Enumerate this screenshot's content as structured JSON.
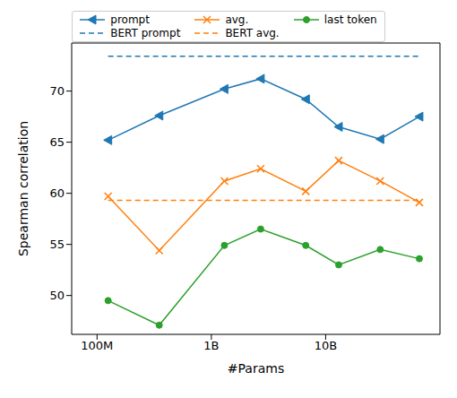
{
  "chart_data": {
    "type": "line",
    "x_label": "#Params",
    "y_label": "Spearman correlation",
    "log": "x",
    "legend": "top",
    "grid": false,
    "xlim": [
      60000000,
      100000000000
    ],
    "xticks": [
      {
        "value": 100000000,
        "label": "100M"
      },
      {
        "value": 1000000000,
        "label": "1B"
      },
      {
        "value": 10000000000,
        "label": "10B"
      }
    ],
    "ylim": [
      46.2,
      74.7
    ],
    "yticks": [
      50,
      55,
      60,
      65,
      70
    ],
    "x": [
      125000000,
      350000000,
      1300000000,
      2700000000,
      6700000000,
      13000000000,
      30000000000,
      66000000000
    ],
    "series": [
      {
        "name": "prompt",
        "color": "#1f77b4",
        "marker": "triangle-left",
        "line_style": "solid",
        "values": [
          65.2,
          67.6,
          70.2,
          71.2,
          69.2,
          66.5,
          65.3,
          67.5
        ]
      },
      {
        "name": "BERT prompt",
        "color": "#1f77b4",
        "marker": "none",
        "line_style": "dashed",
        "values": [
          73.4,
          73.4,
          73.4,
          73.4,
          73.4,
          73.4,
          73.4,
          73.4
        ]
      },
      {
        "name": "avg.",
        "color": "#ff7f0e",
        "marker": "x",
        "line_style": "solid",
        "values": [
          59.7,
          54.4,
          61.2,
          62.4,
          60.2,
          63.2,
          61.2,
          59.1
        ]
      },
      {
        "name": "BERT avg.",
        "color": "#ff7f0e",
        "marker": "none",
        "line_style": "dashed",
        "values": [
          59.3,
          59.3,
          59.3,
          59.3,
          59.3,
          59.3,
          59.3,
          59.3
        ]
      },
      {
        "name": "last token",
        "color": "#2ca02c",
        "marker": "circle",
        "line_style": "solid",
        "values": [
          49.5,
          47.1,
          54.9,
          56.5,
          54.9,
          53.0,
          54.5,
          53.6
        ]
      }
    ]
  }
}
